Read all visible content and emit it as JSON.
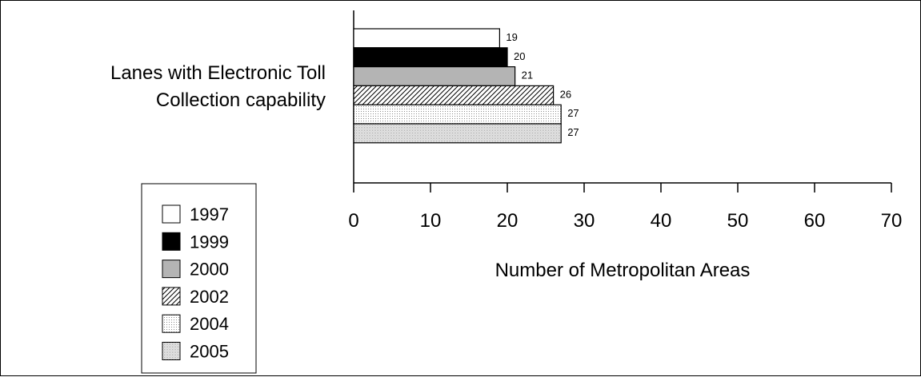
{
  "chart_data": {
    "type": "bar",
    "orientation": "horizontal",
    "categories": [
      "Lanes with Electronic Toll Collection capability"
    ],
    "category_label_lines": [
      "Lanes with Electronic Toll",
      "Collection capability"
    ],
    "series": [
      {
        "name": "1997",
        "values": [
          19
        ],
        "value_label": "19",
        "fill": "white"
      },
      {
        "name": "1999",
        "values": [
          20
        ],
        "value_label": "20",
        "fill": "black"
      },
      {
        "name": "2000",
        "values": [
          21
        ],
        "value_label": "21",
        "fill": "gray"
      },
      {
        "name": "2002",
        "values": [
          26
        ],
        "value_label": "26",
        "fill": "diagonal-hatch"
      },
      {
        "name": "2004",
        "values": [
          27
        ],
        "value_label": "27",
        "fill": "fine-dots"
      },
      {
        "name": "2005",
        "values": [
          27
        ],
        "value_label": "27",
        "fill": "dense-dots"
      }
    ],
    "title": "",
    "xlabel": "Number of Metropolitan Areas",
    "ylabel": "",
    "xlim": [
      0,
      70
    ],
    "ticks": [
      0,
      10,
      20,
      30,
      40,
      50,
      60,
      70
    ],
    "tick_labels": [
      "0",
      "10",
      "20",
      "30",
      "40",
      "50",
      "60",
      "70"
    ],
    "grid": false,
    "legend_position": "bottom-left",
    "colors": {
      "black": "#000000",
      "gray": "#b4b4b4",
      "white": "#ffffff"
    }
  }
}
